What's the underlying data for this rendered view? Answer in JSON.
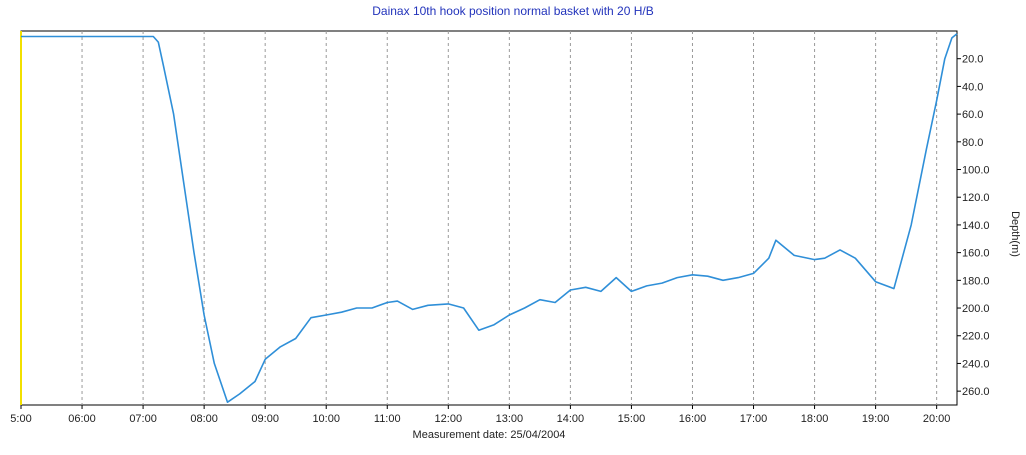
{
  "chart_data": {
    "type": "line",
    "title": "Dainax 10th hook position normal basket with 20 H/B",
    "xlabel": "Measurement date: 25/04/2004",
    "ylabel": "Depth(m)",
    "xlim": [
      "05:00",
      "20:20"
    ],
    "ylim": [
      0,
      270
    ],
    "y_inverted": true,
    "y_axis_position": "right",
    "grid": "vertical dashed",
    "x_ticks": [
      "5:00",
      "06:00",
      "07:00",
      "08:00",
      "09:00",
      "10:00",
      "11:00",
      "12:00",
      "13:00",
      "14:00",
      "15:00",
      "16:00",
      "17:00",
      "18:00",
      "19:00",
      "20:00"
    ],
    "y_ticks": [
      "20.0",
      "40.0",
      "60.0",
      "80.0",
      "100.0",
      "120.0",
      "140.0",
      "160.0",
      "180.0",
      "200.0",
      "220.0",
      "240.0",
      "260.0"
    ],
    "series": [
      {
        "color": "#2f8fd8",
        "points": [
          [
            "05:00",
            4
          ],
          [
            "07:10",
            4
          ],
          [
            "07:15",
            8
          ],
          [
            "07:20",
            25
          ],
          [
            "07:30",
            60
          ],
          [
            "07:40",
            110
          ],
          [
            "07:50",
            160
          ],
          [
            "08:00",
            205
          ],
          [
            "08:10",
            240
          ],
          [
            "08:23",
            268
          ],
          [
            "08:35",
            262
          ],
          [
            "08:50",
            253
          ],
          [
            "09:00",
            237
          ],
          [
            "09:15",
            228
          ],
          [
            "09:30",
            222
          ],
          [
            "09:45",
            207
          ],
          [
            "10:00",
            205
          ],
          [
            "10:15",
            203
          ],
          [
            "10:30",
            200
          ],
          [
            "10:45",
            200
          ],
          [
            "11:00",
            196
          ],
          [
            "11:10",
            195
          ],
          [
            "11:25",
            201
          ],
          [
            "11:40",
            198
          ],
          [
            "12:00",
            197
          ],
          [
            "12:15",
            200
          ],
          [
            "12:30",
            216
          ],
          [
            "12:45",
            212
          ],
          [
            "13:00",
            205
          ],
          [
            "13:15",
            200
          ],
          [
            "13:30",
            194
          ],
          [
            "13:45",
            196
          ],
          [
            "14:00",
            187
          ],
          [
            "14:15",
            185
          ],
          [
            "14:30",
            188
          ],
          [
            "14:45",
            178
          ],
          [
            "15:00",
            188
          ],
          [
            "15:15",
            184
          ],
          [
            "15:30",
            182
          ],
          [
            "15:45",
            178
          ],
          [
            "16:00",
            176
          ],
          [
            "16:15",
            177
          ],
          [
            "16:30",
            180
          ],
          [
            "16:45",
            178
          ],
          [
            "17:00",
            175
          ],
          [
            "17:15",
            164
          ],
          [
            "17:22",
            151
          ],
          [
            "17:40",
            162
          ],
          [
            "18:00",
            165
          ],
          [
            "18:10",
            164
          ],
          [
            "18:25",
            158
          ],
          [
            "18:40",
            164
          ],
          [
            "19:00",
            181
          ],
          [
            "19:18",
            186
          ],
          [
            "19:35",
            140
          ],
          [
            "19:50",
            85
          ],
          [
            "20:00",
            50
          ],
          [
            "20:08",
            20
          ],
          [
            "20:15",
            5
          ],
          [
            "20:20",
            2
          ]
        ]
      }
    ]
  }
}
